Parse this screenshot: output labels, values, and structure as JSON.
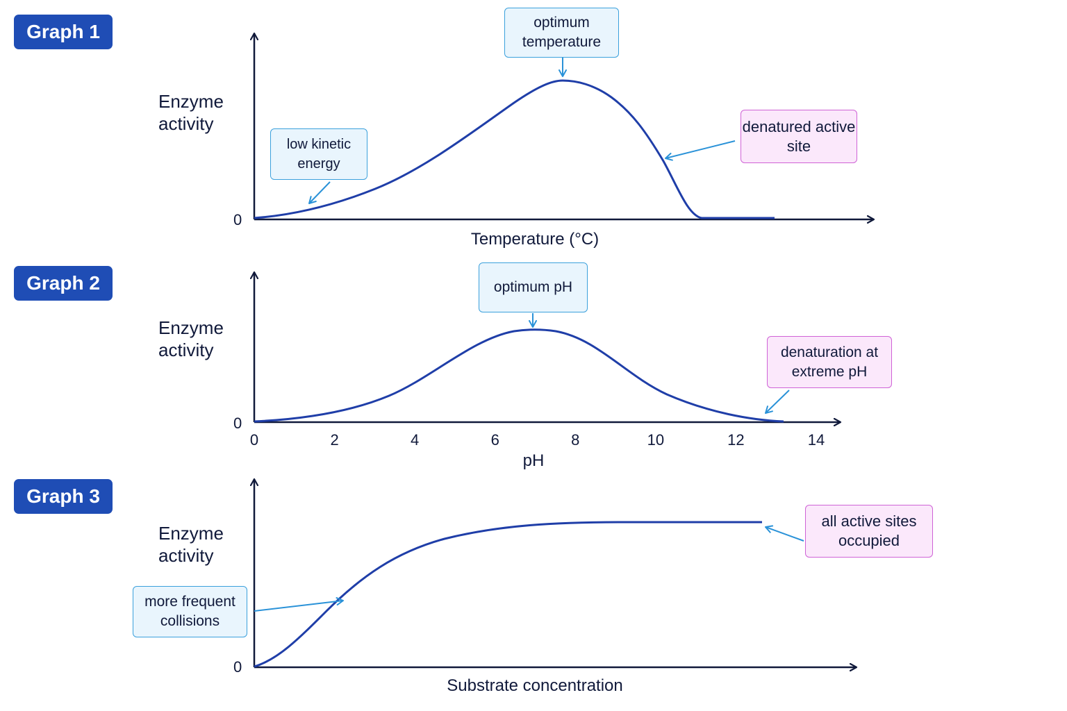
{
  "colors": {
    "badge": "#1f4db5",
    "curve": "#1f3ea8",
    "axis": "#10193a",
    "arrow": "#2a92d8",
    "note_blue_fill": "#e9f5fd",
    "note_blue_border": "#3aa0dc",
    "note_pink_fill": "#fbe8fb",
    "note_pink_border": "#cf62d6"
  },
  "chart_data": [
    {
      "type": "line",
      "badge": "Graph 1",
      "ylabel": "Enzyme activity",
      "xlabel": "Temperature (°C)",
      "y_tick": "0",
      "annotations": [
        {
          "text": "optimum temperature",
          "style": "blue"
        },
        {
          "text": "low kinetic energy",
          "style": "blue"
        },
        {
          "text": "denatured active site",
          "style": "pink"
        }
      ]
    },
    {
      "type": "line",
      "badge": "Graph 2",
      "ylabel": "Enzyme activity",
      "xlabel": "pH",
      "y_tick": "0",
      "x_ticks": [
        "0",
        "2",
        "4",
        "6",
        "8",
        "10",
        "12",
        "14"
      ],
      "xlim": [
        0,
        14
      ],
      "optimum_x": 7,
      "annotations": [
        {
          "text": "optimum pH",
          "style": "blue"
        },
        {
          "text": "denaturation at extreme pH",
          "style": "pink"
        }
      ]
    },
    {
      "type": "line",
      "badge": "Graph 3",
      "ylabel": "Enzyme activity",
      "xlabel": "Substrate concentration",
      "y_tick": "0",
      "annotations": [
        {
          "text": "more frequent collisions",
          "style": "blue"
        },
        {
          "text": "all active sites occupied",
          "style": "pink"
        }
      ]
    }
  ]
}
